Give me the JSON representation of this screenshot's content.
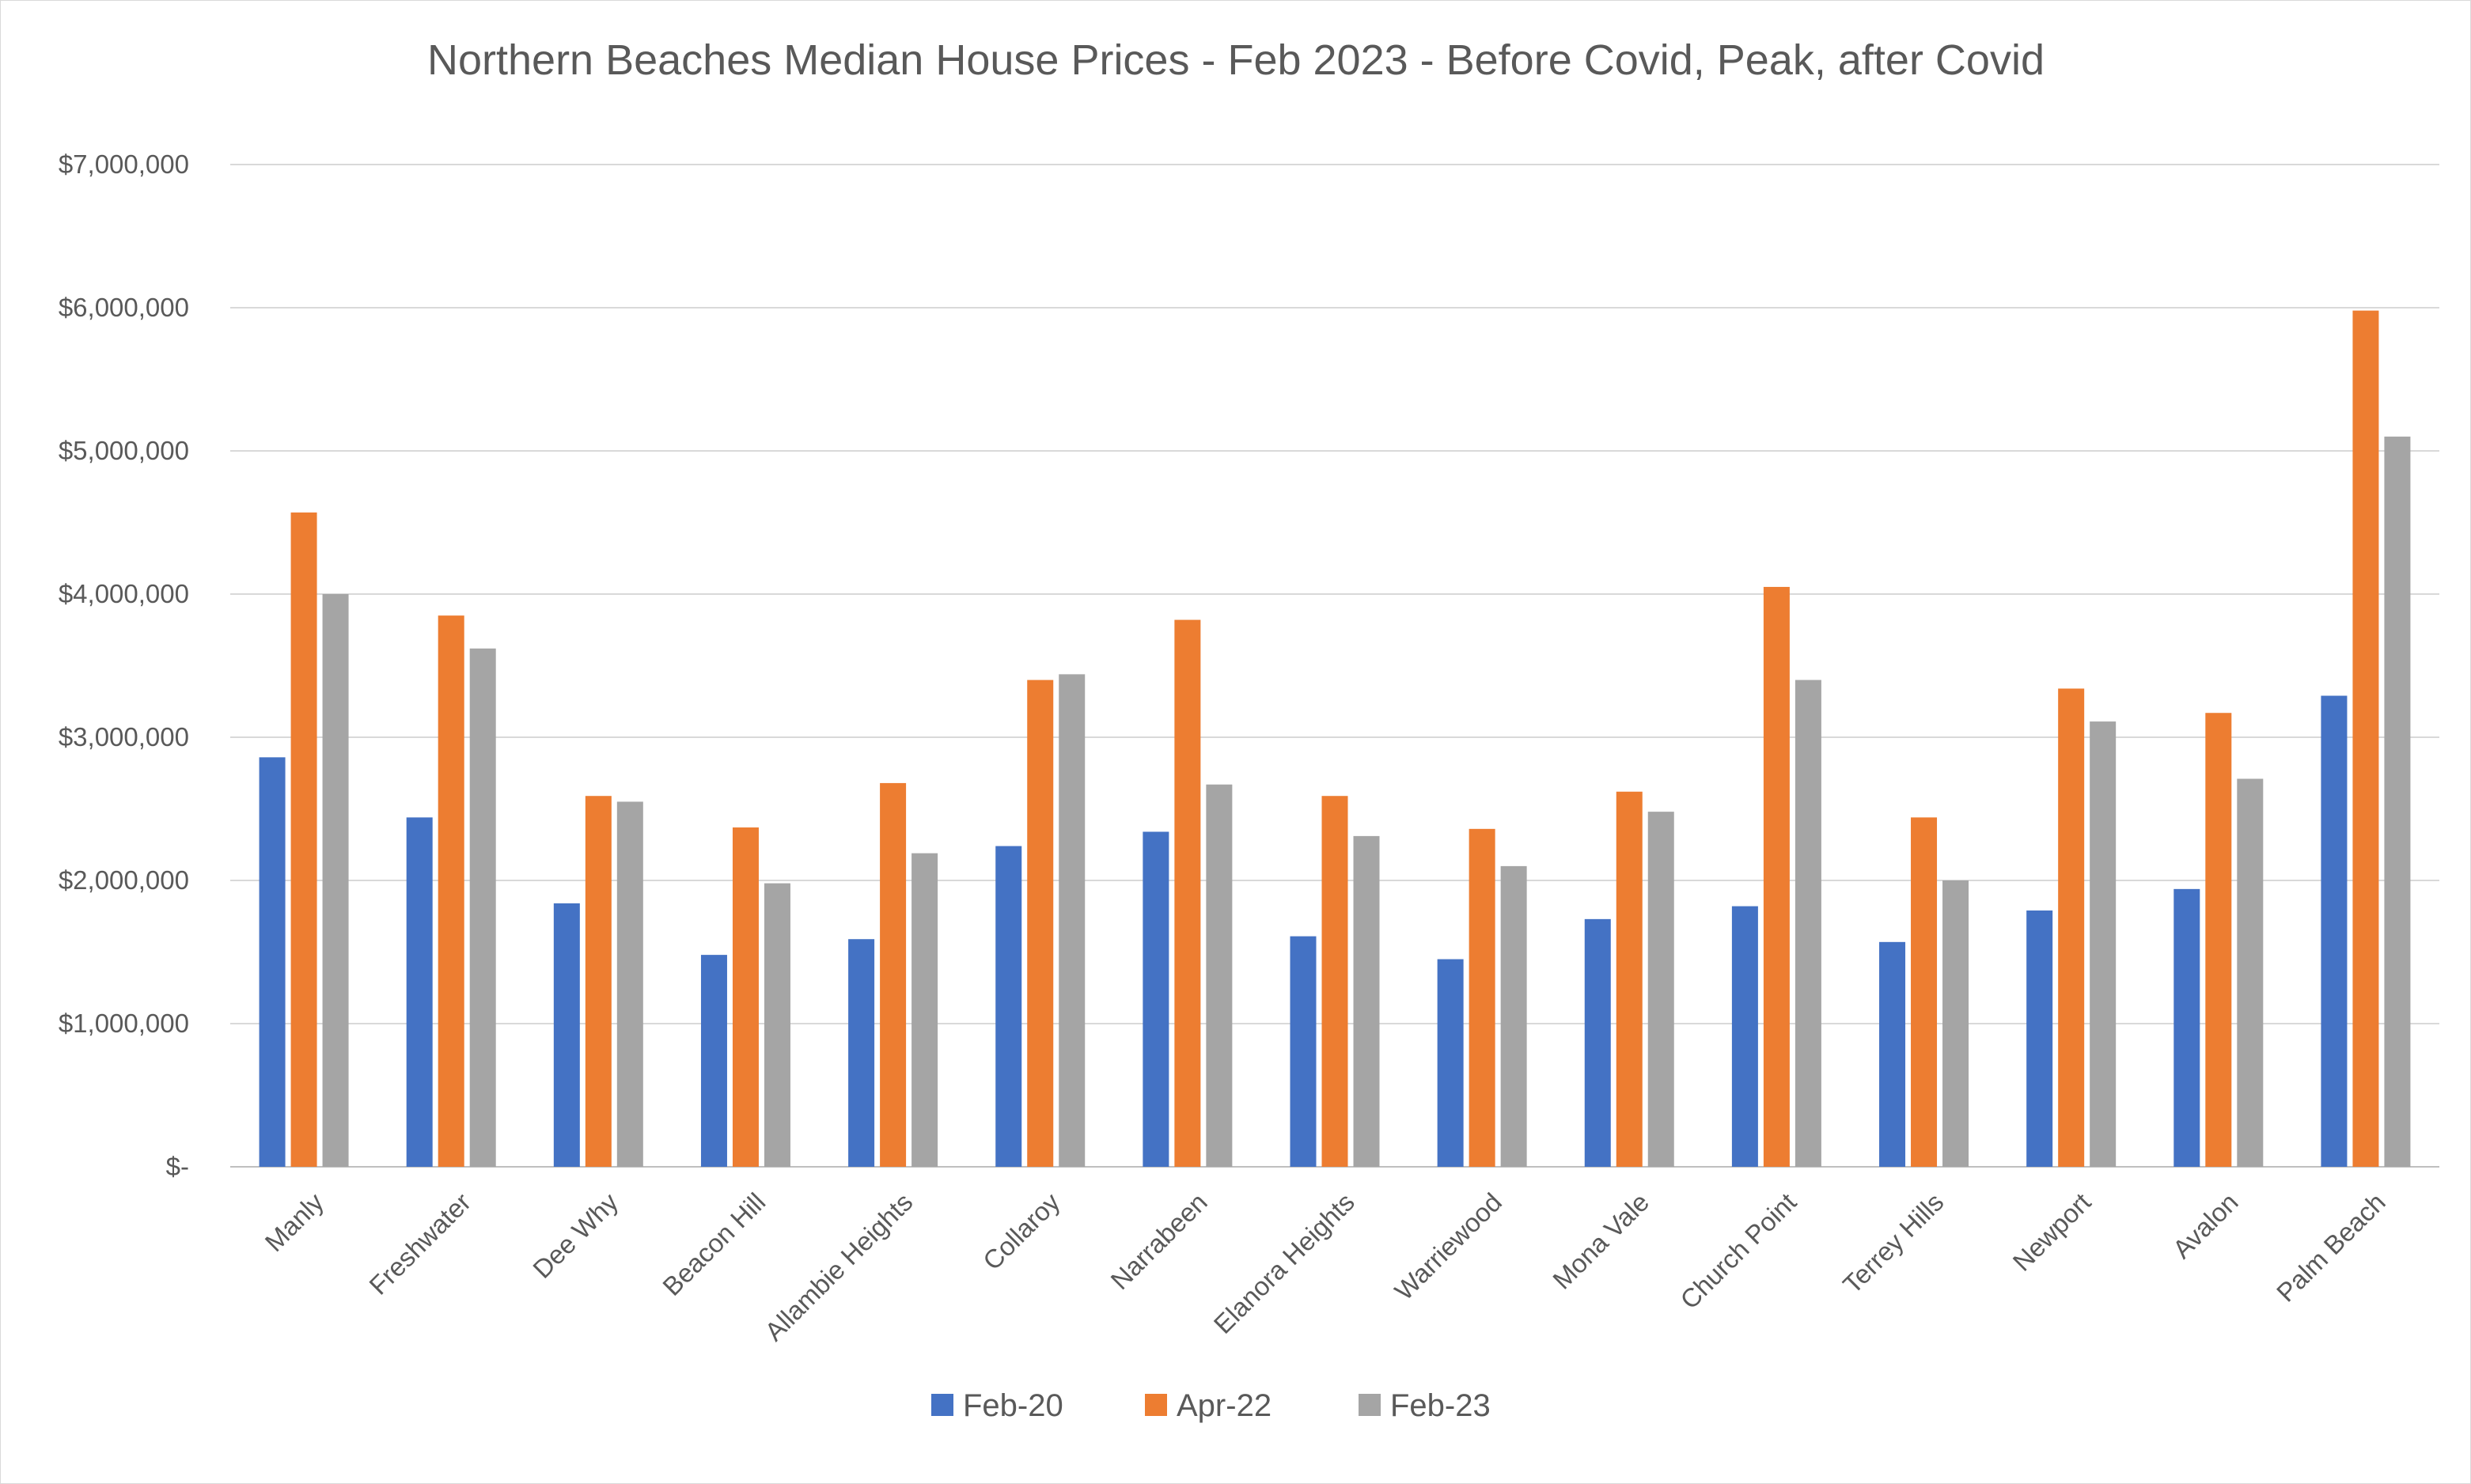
{
  "chart_data": {
    "type": "bar",
    "title": "Northern Beaches Median House Prices - Feb 2023 - Before Covid, Peak, after Covid",
    "xlabel": "",
    "ylabel": "",
    "ylim": [
      0,
      7000000
    ],
    "y_ticks": [
      0,
      1000000,
      2000000,
      3000000,
      4000000,
      5000000,
      6000000,
      7000000
    ],
    "y_tick_labels": [
      "$-",
      "$1,000,000",
      "$2,000,000",
      "$3,000,000",
      "$4,000,000",
      "$5,000,000",
      "$6,000,000",
      "$7,000,000"
    ],
    "grid": true,
    "legend_position": "bottom",
    "categories": [
      "Manly",
      "Freshwater",
      "Dee Why",
      "Beacon Hill",
      "Allambie Heights",
      "Collaroy",
      "Narrabeen",
      "Elanora Heights",
      "Warriewood",
      "Mona Vale",
      "Church Point",
      "Terrey Hills",
      "Newport",
      "Avalon",
      "Palm Beach"
    ],
    "series": [
      {
        "name": "Feb-20",
        "color": "#4472c4",
        "values": [
          2860000,
          2440000,
          1840000,
          1480000,
          1590000,
          2240000,
          2340000,
          1610000,
          1450000,
          1730000,
          1820000,
          1570000,
          1790000,
          1940000,
          3290000
        ]
      },
      {
        "name": "Apr-22",
        "color": "#ed7d31",
        "values": [
          4570000,
          3850000,
          2590000,
          2370000,
          2680000,
          3400000,
          3820000,
          2590000,
          2360000,
          2620000,
          4050000,
          2440000,
          3340000,
          3170000,
          5980000
        ]
      },
      {
        "name": "Feb-23",
        "color": "#a5a5a5",
        "values": [
          4000000,
          3620000,
          2550000,
          1980000,
          2190000,
          3440000,
          2670000,
          2310000,
          2100000,
          2480000,
          3400000,
          2000000,
          3110000,
          2710000,
          5100000
        ]
      }
    ]
  }
}
